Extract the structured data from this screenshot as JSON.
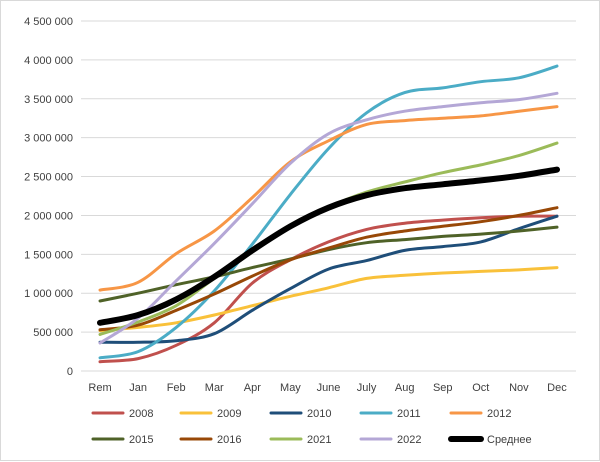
{
  "chart_data": {
    "type": "line",
    "title": "",
    "xlabel": "",
    "ylabel": "",
    "categories": [
      "Rem",
      "Jan",
      "Feb",
      "Mar",
      "Apr",
      "May",
      "June",
      "July",
      "Aug",
      "Sep",
      "Oct",
      "Nov",
      "Dec"
    ],
    "ylim": [
      0,
      4500000
    ],
    "yticks": [
      0,
      500000,
      1000000,
      1500000,
      2000000,
      2500000,
      3000000,
      3500000,
      4000000,
      4500000
    ],
    "ytick_labels": [
      "0",
      "500 000",
      "1 000 000",
      "1 500 000",
      "2 000 000",
      "2 500 000",
      "3 000 000",
      "3 500 000",
      "4 000 000",
      "4 500 000"
    ],
    "grid": true,
    "legend_position": "bottom",
    "series": [
      {
        "name": "2008",
        "color": "#c0504d",
        "width": 3,
        "values": [
          120000,
          160000,
          330000,
          620000,
          1130000,
          1430000,
          1660000,
          1820000,
          1900000,
          1940000,
          1970000,
          1990000,
          1990000
        ]
      },
      {
        "name": "2009",
        "color": "#f9c13a",
        "width": 3,
        "values": [
          520000,
          560000,
          620000,
          720000,
          840000,
          960000,
          1070000,
          1190000,
          1230000,
          1260000,
          1280000,
          1300000,
          1330000
        ]
      },
      {
        "name": "2010",
        "color": "#1f4e79",
        "width": 3,
        "values": [
          370000,
          370000,
          390000,
          480000,
          780000,
          1060000,
          1310000,
          1420000,
          1550000,
          1600000,
          1660000,
          1830000,
          1990000
        ]
      },
      {
        "name": "2011",
        "color": "#4bacc6",
        "width": 3,
        "values": [
          170000,
          250000,
          560000,
          1030000,
          1630000,
          2270000,
          2860000,
          3320000,
          3580000,
          3640000,
          3720000,
          3770000,
          3920000
        ]
      },
      {
        "name": "2012",
        "color": "#f79646",
        "width": 3,
        "values": [
          1040000,
          1140000,
          1510000,
          1800000,
          2230000,
          2690000,
          2960000,
          3170000,
          3220000,
          3250000,
          3280000,
          3340000,
          3400000
        ]
      },
      {
        "name": "2015",
        "color": "#4f6228",
        "width": 3,
        "values": [
          900000,
          1000000,
          1110000,
          1210000,
          1330000,
          1440000,
          1560000,
          1650000,
          1690000,
          1730000,
          1760000,
          1800000,
          1850000
        ]
      },
      {
        "name": "2016",
        "color": "#984807",
        "width": 3,
        "values": [
          530000,
          590000,
          780000,
          990000,
          1220000,
          1430000,
          1580000,
          1720000,
          1800000,
          1860000,
          1920000,
          2000000,
          2100000
        ]
      },
      {
        "name": "2021",
        "color": "#9bbb59",
        "width": 3,
        "values": [
          470000,
          630000,
          840000,
          1190000,
          1530000,
          1880000,
          2110000,
          2300000,
          2430000,
          2550000,
          2650000,
          2770000,
          2930000
        ]
      },
      {
        "name": "2022",
        "color": "#b4a7d6",
        "width": 3,
        "values": [
          360000,
          680000,
          1160000,
          1640000,
          2150000,
          2670000,
          3050000,
          3230000,
          3340000,
          3400000,
          3450000,
          3490000,
          3570000
        ]
      },
      {
        "name": "Среднее",
        "color": "#000000",
        "width": 6,
        "values": [
          620000,
          720000,
          920000,
          1210000,
          1550000,
          1860000,
          2100000,
          2260000,
          2350000,
          2400000,
          2450000,
          2510000,
          2590000
        ]
      }
    ]
  }
}
